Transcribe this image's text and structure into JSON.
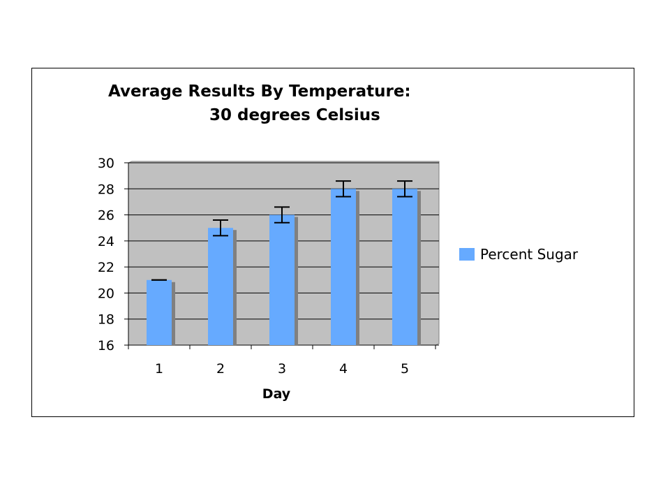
{
  "colors": {
    "bar_fill": "#66aaff",
    "bar_shadow": "#808080",
    "plot_background": "#c0c0c0",
    "gridline": "#000000",
    "error_bar": "#000000"
  },
  "chart_data": {
    "type": "bar",
    "title": [
      "Average Results By Temperature:",
      "30 degrees Celsius"
    ],
    "xlabel": "Day",
    "ylabel": "",
    "categories": [
      "1",
      "2",
      "3",
      "4",
      "5"
    ],
    "series": [
      {
        "name": "Percent Sugar",
        "values": [
          21,
          25,
          26,
          28,
          28
        ],
        "error": [
          0,
          0.6,
          0.6,
          0.6,
          0.6
        ]
      }
    ],
    "ylim": [
      16,
      30
    ],
    "yticks": [
      16,
      18,
      20,
      22,
      24,
      26,
      28,
      30
    ],
    "grid": true,
    "legend_position": "right"
  }
}
